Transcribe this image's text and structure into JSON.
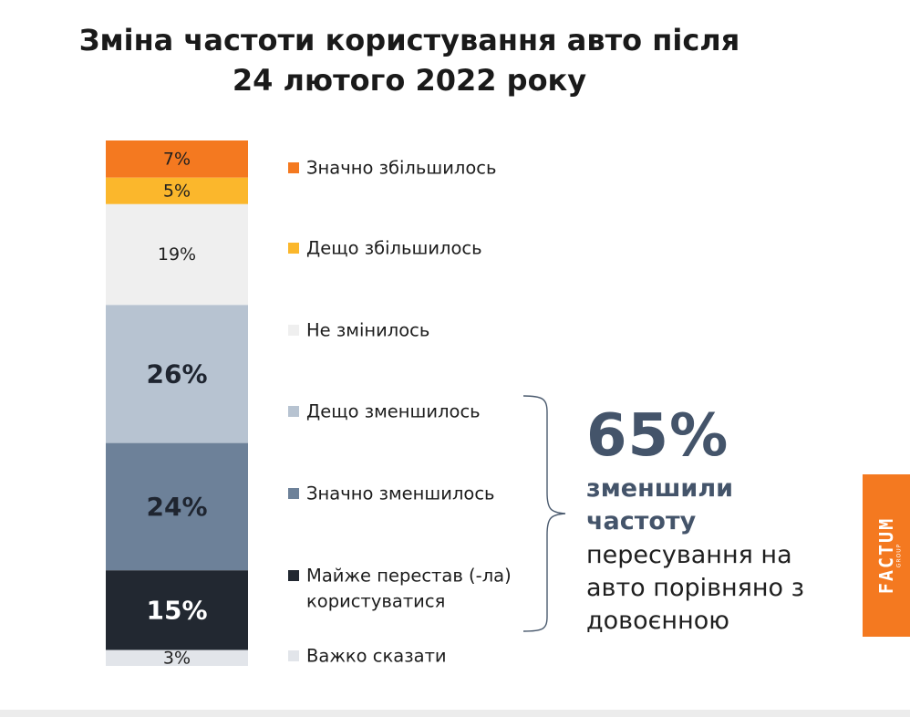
{
  "title": {
    "line1": "Зміна частоти користування авто після",
    "line2": "24 лютого 2022 року"
  },
  "chart_data": {
    "type": "bar",
    "stacked": true,
    "unit": "%",
    "categories": [
      "Значно збільшилось",
      "Дещо збільшилось",
      "Не змінилось",
      "Дещо зменшилось",
      "Значно зменшилось",
      "Майже перестав  (-ла) користуватися",
      "Важко сказати"
    ],
    "series": [
      {
        "name": "Значно збільшилось",
        "value": 7,
        "label": "7%",
        "color": "#f47920",
        "label_color": "#1f1f1f",
        "bold": false
      },
      {
        "name": "Дещо збільшилось",
        "value": 5,
        "label": "5%",
        "color": "#fbb72c",
        "label_color": "#1f1f1f",
        "bold": false
      },
      {
        "name": "Не змінилось",
        "value": 19,
        "label": "19%",
        "color": "#efefef",
        "label_color": "#1f1f1f",
        "bold": false
      },
      {
        "name": "Дещо зменшилось",
        "value": 26,
        "label": "26%",
        "color": "#b7c3d1",
        "label_color": "#1f2530",
        "bold": true
      },
      {
        "name": "Значно зменшилось",
        "value": 24,
        "label": "24%",
        "color": "#6d8199",
        "label_color": "#1f2530",
        "bold": true
      },
      {
        "name": "Майже перестав  (-ла) користуватися",
        "legend_lines": [
          "Майже перестав  (-ла)",
          "користуватися"
        ],
        "value": 15,
        "label": "15%",
        "color": "#222831",
        "label_color": "#ffffff",
        "bold": true
      },
      {
        "name": "Важко сказати",
        "value": 3,
        "label": "3%",
        "color": "#e2e5ea",
        "label_color": "#1f1f1f",
        "bold": false
      }
    ],
    "legend_placement": "right",
    "grid": false
  },
  "summary": {
    "value": "65%",
    "bold_lines": [
      "зменшили",
      "частоту"
    ],
    "regular_lines": [
      "пересування на",
      "авто порівняно з",
      "довоєнною"
    ]
  },
  "logo": {
    "text": "FACTUM",
    "sub": "GROUP",
    "color": "#f47920"
  }
}
